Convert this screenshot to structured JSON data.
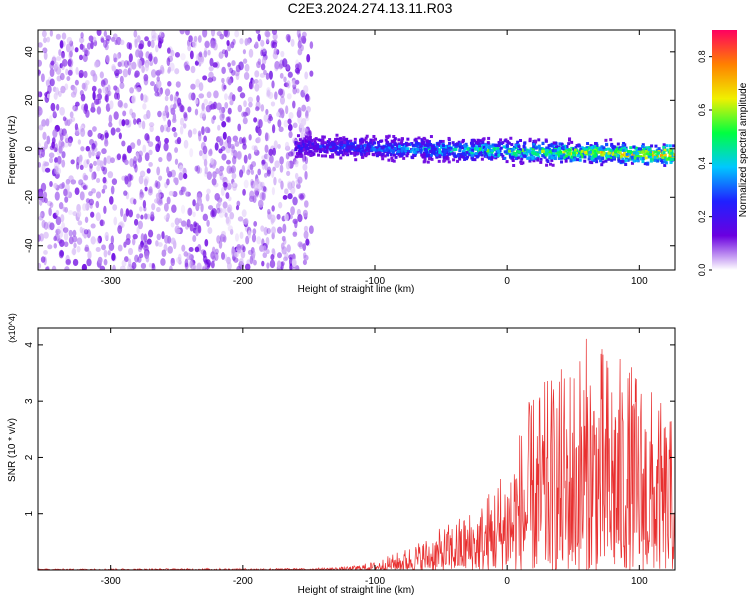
{
  "figure_title": "C2E3.2024.274.13.11.R03",
  "chart_data": [
    {
      "type": "heatmap",
      "title": "",
      "xlabel": "Height of straight line (km)",
      "ylabel": "Frequency (Hz)",
      "xlim": [
        -355,
        127
      ],
      "ylim": [
        -50,
        49
      ],
      "x_ticks": [
        -300,
        -200,
        -100,
        0,
        100
      ],
      "y_ticks": [
        -40,
        -20,
        0,
        20,
        40
      ],
      "colorbar": {
        "label": "Normalized spectral amplitude",
        "range": [
          0.0,
          0.9
        ],
        "ticks": [
          0.0,
          0.2,
          0.4,
          0.6,
          0.8
        ],
        "colors": [
          "#ffffff",
          "#6a00e0",
          "#2020ff",
          "#00c8ff",
          "#00ff40",
          "#f0f000",
          "#ff8000",
          "#ff0060"
        ]
      },
      "regions": [
        {
          "x_range": [
            -355,
            -160
          ],
          "f_range": [
            -50,
            49
          ],
          "amplitude": 0.05
        },
        {
          "x_range": [
            -160,
            127
          ],
          "f_center": 1,
          "f_halfwidth": 4,
          "peak_amplitude": 0.85
        }
      ]
    },
    {
      "type": "line",
      "title": "",
      "xlabel": "Height of straight line (km)",
      "ylabel": "SNR (10 * v/v)",
      "y_multiplier": "(x10^4)",
      "xlim": [
        -355,
        127
      ],
      "ylim": [
        0,
        4.3
      ],
      "x_ticks": [
        -300,
        -200,
        -100,
        0,
        100
      ],
      "y_ticks": [
        1,
        2,
        3,
        4
      ],
      "color": "#e83030",
      "envelope": {
        "x": [
          -355,
          -150,
          -120,
          -100,
          -80,
          -60,
          -40,
          -20,
          0,
          20,
          40,
          60,
          80,
          100,
          127
        ],
        "y": [
          0.02,
          0.03,
          0.06,
          0.15,
          0.35,
          0.6,
          0.9,
          1.2,
          2.0,
          3.2,
          3.6,
          4.2,
          3.9,
          3.6,
          2.6
        ]
      }
    }
  ]
}
